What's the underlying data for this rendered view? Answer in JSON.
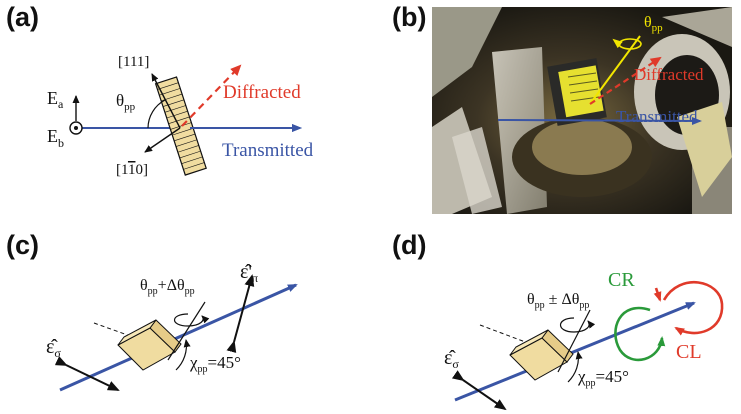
{
  "panels": {
    "a": {
      "letter": "(a)",
      "label_111": "[111]",
      "label_1m10_a": "[1",
      "label_1m10_b": "1",
      "label_1m10_c": "0]",
      "E_a": "E",
      "E_a_sub": "a",
      "E_b": "E",
      "E_b_sub": "b",
      "theta": "θ",
      "theta_sub": "pp",
      "diffracted": "Diffracted",
      "transmitted": "Transmitted"
    },
    "b": {
      "letter": "(b)",
      "theta": "θ",
      "theta_sub": "pp",
      "diffracted": "Diffracted",
      "transmitted": "Transmitted"
    },
    "c": {
      "letter": "(c)",
      "theta": "θ",
      "theta_sub": "pp",
      "plus": "+Δθ",
      "plus_sub": "pp",
      "eps_pi": "ε̂'",
      "eps_pi_sub": "π",
      "eps_sigma": "ε̂",
      "eps_sigma_sub": "σ",
      "chi": "χ",
      "chi_sub": "pp",
      "chi_val": "=45°"
    },
    "d": {
      "letter": "(d)",
      "theta": "θ",
      "theta_sub": "pp",
      "pm": " ± Δθ",
      "pm_sub": "pp",
      "cr": "CR",
      "cl": "CL",
      "eps_sigma": "ε̂",
      "eps_sigma_sub": "σ",
      "chi": "χ",
      "chi_sub": "pp",
      "chi_val": "=45°"
    }
  },
  "colors": {
    "transmitted_blue": "#3a55a5",
    "diffracted_red": "#e03a2a",
    "crystal_fill": "#f0dca0",
    "cr_green": "#2a9a3a",
    "cl_red": "#e03a2a",
    "photo_yellow": "#f2e600"
  }
}
